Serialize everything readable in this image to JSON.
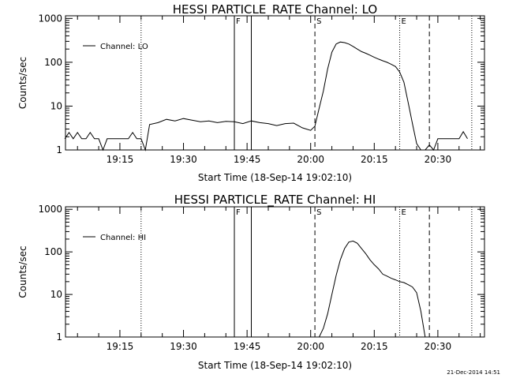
{
  "chart_data": [
    {
      "type": "line",
      "title": "HESSI PARTICLE_RATE Channel: LO",
      "xlabel": "Start Time (18-Sep-14 19:02:10)",
      "ylabel": "Counts/sec",
      "yscale": "log",
      "ylim": [
        1,
        1000
      ],
      "xlim_minutes": [
        "19:02",
        "20:41"
      ],
      "x_tick_labels": [
        "19:15",
        "19:30",
        "19:45",
        "20:00",
        "20:15",
        "20:30"
      ],
      "y_tick_labels": [
        "1",
        "10",
        "100",
        "1000"
      ],
      "legend": "Channel: LO",
      "legend_position": "top-left",
      "markers": [
        {
          "label": "",
          "style": "dotted",
          "time": "19:20"
        },
        {
          "label": "F",
          "style": "solid",
          "time": "19:42"
        },
        {
          "label": "",
          "style": "solid",
          "time": "19:46"
        },
        {
          "label": "S",
          "style": "dashed",
          "time": "20:01"
        },
        {
          "label": "E",
          "style": "dotted",
          "time": "20:21"
        },
        {
          "label": "",
          "style": "dashed",
          "time": "20:28"
        },
        {
          "label": "",
          "style": "dotted",
          "time": "20:38"
        }
      ],
      "series": [
        {
          "x": [
            "19:02",
            "19:03",
            "19:04",
            "19:05",
            "19:06",
            "19:07",
            "19:08",
            "19:09",
            "19:10",
            "19:11",
            "19:12",
            "19:13",
            "19:14",
            "19:15",
            "19:16",
            "19:17",
            "19:18",
            "19:19",
            "19:20",
            "19:21",
            "19:22",
            "19:24",
            "19:26",
            "19:28",
            "19:30",
            "19:32",
            "19:34",
            "19:36",
            "19:38",
            "19:40",
            "19:42",
            "19:44",
            "19:46",
            "19:48",
            "19:50",
            "19:52",
            "19:54",
            "19:56",
            "19:58",
            "20:00",
            "20:01",
            "20:02",
            "20:03",
            "20:04",
            "20:05",
            "20:06",
            "20:07",
            "20:08",
            "20:09",
            "20:10",
            "20:11",
            "20:12",
            "20:13",
            "20:14",
            "20:15",
            "20:16",
            "20:17",
            "20:18",
            "20:19",
            "20:20",
            "20:21",
            "20:22",
            "20:23",
            "20:24",
            "20:25",
            "20:26",
            "20:27",
            "20:28",
            "20:29",
            "20:30",
            "20:31",
            "20:32",
            "20:33",
            "20:34",
            "20:35",
            "20:36",
            "20:37"
          ],
          "values": [
            1.8,
            2.5,
            1.8,
            2.5,
            1.8,
            1.8,
            2.5,
            1.8,
            1.8,
            1.0,
            1.8,
            1.8,
            1.8,
            1.8,
            1.8,
            1.8,
            2.5,
            1.8,
            1.8,
            1.0,
            3.8,
            4.2,
            5.0,
            4.6,
            5.2,
            4.8,
            4.4,
            4.6,
            4.2,
            4.5,
            4.4,
            4.0,
            4.6,
            4.2,
            4.0,
            3.6,
            4.0,
            4.1,
            3.2,
            2.8,
            3.5,
            9,
            22,
            70,
            170,
            260,
            290,
            280,
            260,
            230,
            200,
            175,
            160,
            145,
            130,
            118,
            108,
            100,
            90,
            80,
            60,
            35,
            12,
            4,
            1.4,
            1.0,
            1.0,
            1.3,
            1.0,
            1.8,
            1.8,
            1.8,
            1.8,
            1.8,
            1.8,
            2.6,
            1.8
          ]
        }
      ]
    },
    {
      "type": "line",
      "title": "HESSI PARTICLE_RATE Channel: HI",
      "xlabel": "Start Time (18-Sep-14 19:02:10)",
      "ylabel": "Counts/sec",
      "yscale": "log",
      "ylim": [
        1,
        1000
      ],
      "xlim_minutes": [
        "19:02",
        "20:41"
      ],
      "x_tick_labels": [
        "19:15",
        "19:30",
        "19:45",
        "20:00",
        "20:15",
        "20:30"
      ],
      "y_tick_labels": [
        "1",
        "10",
        "100",
        "1000"
      ],
      "legend": "Channel: HI",
      "legend_position": "top-left",
      "markers": [
        {
          "label": "",
          "style": "dotted",
          "time": "19:20"
        },
        {
          "label": "F",
          "style": "solid",
          "time": "19:42"
        },
        {
          "label": "",
          "style": "solid",
          "time": "19:46"
        },
        {
          "label": "S",
          "style": "dashed",
          "time": "20:01"
        },
        {
          "label": "E",
          "style": "dotted",
          "time": "20:21"
        },
        {
          "label": "",
          "style": "dashed",
          "time": "20:28"
        },
        {
          "label": "",
          "style": "dotted",
          "time": "20:38"
        }
      ],
      "series": [
        {
          "x": [
            "20:02",
            "20:03",
            "20:04",
            "20:05",
            "20:06",
            "20:07",
            "20:08",
            "20:09",
            "20:10",
            "20:11",
            "20:12",
            "20:13",
            "20:14",
            "20:15",
            "20:16",
            "20:17",
            "20:18",
            "20:19",
            "20:20",
            "20:21",
            "20:22",
            "20:23",
            "20:24",
            "20:25",
            "20:26",
            "20:27"
          ],
          "values": [
            1.0,
            1.6,
            3.5,
            10,
            28,
            65,
            120,
            170,
            180,
            160,
            120,
            90,
            65,
            50,
            40,
            30,
            27,
            24,
            22,
            20,
            19,
            17,
            15,
            11,
            4,
            1.0
          ]
        }
      ]
    }
  ],
  "footer": {
    "timestamp": "21-Dec-2014 14:51"
  }
}
